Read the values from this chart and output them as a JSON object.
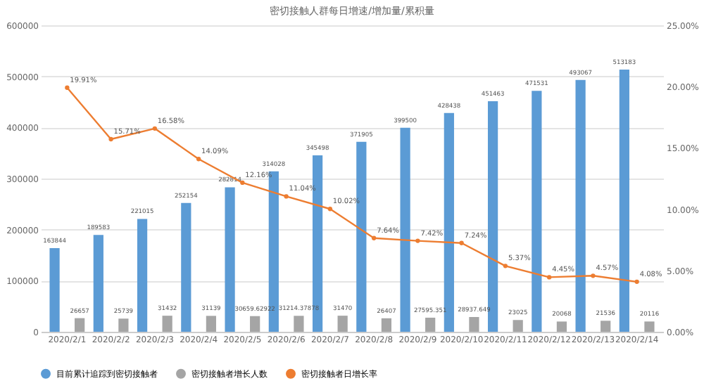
{
  "chart_data": {
    "type": "bar",
    "title": "密切接触人群每日增速/增加量/累积量",
    "categories": [
      "2020/2/1",
      "2020/2/2",
      "2020/2/3",
      "2020/2/4",
      "2020/2/5",
      "2020/2/6",
      "2020/2/7",
      "2020/2/8",
      "2020/2/9",
      "2020/2/10",
      "2020/2/11",
      "2020/2/12",
      "2020/2/13",
      "2020/2/14"
    ],
    "series": [
      {
        "name": "目前累计追踪到密切接触者",
        "color": "#5b9bd5",
        "values": [
          163844,
          189583,
          221015,
          252154,
          282814,
          314028,
          345498,
          371905,
          399500,
          428438,
          451463,
          471531,
          493067,
          513183
        ],
        "value_labels": [
          "163844",
          "189583",
          "221015",
          "252154",
          "282814",
          "314028",
          "345498",
          "371905",
          "399500",
          "428438",
          "451463",
          "471531",
          "493067",
          "513183"
        ]
      },
      {
        "name": "密切接触者增长人数",
        "color": "#a5a5a5",
        "values": [
          26657,
          25739,
          31432,
          31139,
          30659.62922,
          31214.37878,
          31470,
          26407,
          27595.351,
          28937.649,
          23025,
          20068,
          21536,
          20116
        ],
        "value_labels": [
          "26657",
          "25739",
          "31432",
          "31139",
          "30659.62922",
          "31214.37878",
          "31470",
          "26407",
          "27595.351",
          "28937.649",
          "23025",
          "20068",
          "21536",
          "20116"
        ]
      },
      {
        "name": "密切接触者日增长率",
        "color": "#ed7d31",
        "type": "line",
        "axis": "y2",
        "values": [
          19.91,
          15.71,
          16.58,
          14.09,
          12.16,
          11.04,
          10.02,
          7.64,
          7.42,
          7.24,
          5.37,
          4.45,
          4.57,
          4.08
        ],
        "value_labels": [
          "19.91%",
          "15.71%",
          "16.58%",
          "14.09%",
          "12.16%",
          "11.04%",
          "10.02%",
          "7.64%",
          "7.42%",
          "7.24%",
          "5.37%",
          "4.45%",
          "4.57%",
          "4.08%"
        ]
      }
    ],
    "ylim": [
      0,
      600000
    ],
    "yticks": [
      0,
      100000,
      200000,
      300000,
      400000,
      500000,
      600000
    ],
    "y2lim": [
      0,
      25
    ],
    "y2ticks": [
      {
        "value": 0,
        "label": "0.00%"
      },
      {
        "value": 5,
        "label": "5.00%"
      },
      {
        "value": 10,
        "label": "10.00%"
      },
      {
        "value": 15,
        "label": "15.00%"
      },
      {
        "value": 20,
        "label": "20.00%"
      },
      {
        "value": 25,
        "label": "25.00%"
      }
    ],
    "grid": "y",
    "legend": "bottom",
    "marker": "circle"
  }
}
